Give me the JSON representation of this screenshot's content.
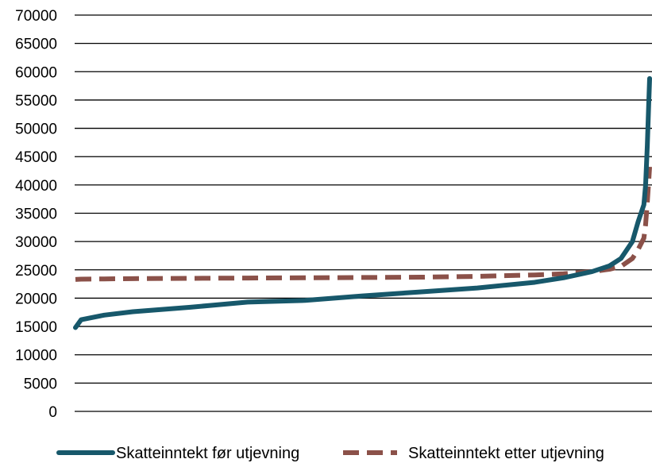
{
  "chart_data": {
    "type": "line",
    "title": "",
    "xlabel": "",
    "ylabel": "",
    "ylim": [
      0,
      70000
    ],
    "yticks": [
      0,
      5000,
      10000,
      15000,
      20000,
      25000,
      30000,
      35000,
      40000,
      45000,
      50000,
      55000,
      60000,
      65000,
      70000
    ],
    "ytick_labels": [
      "0",
      "5000",
      "10000",
      "15000",
      "20000",
      "25000",
      "30000",
      "35000",
      "40000",
      "45000",
      "50000",
      "55000",
      "60000",
      "65000",
      "70000"
    ],
    "grid": true,
    "legend_position": "bottom",
    "x": [
      0,
      0.01,
      0.05,
      0.1,
      0.2,
      0.3,
      0.4,
      0.5,
      0.6,
      0.7,
      0.8,
      0.85,
      0.9,
      0.93,
      0.95,
      0.97,
      0.98,
      0.99,
      0.993,
      0.996,
      0.998,
      1.0
    ],
    "series": [
      {
        "name": "Skatteinntekt før utjevning",
        "color": "#17586b",
        "style": "solid",
        "values": [
          14800,
          16200,
          17000,
          17600,
          18400,
          19300,
          19600,
          20400,
          21100,
          21800,
          22800,
          23600,
          24700,
          25700,
          27000,
          30000,
          33500,
          36500,
          40000,
          47000,
          53000,
          58800
        ]
      },
      {
        "name": "Skatteinntekt etter utjevning",
        "color": "#8b5149",
        "style": "dashed",
        "values": [
          23300,
          23350,
          23400,
          23450,
          23500,
          23550,
          23600,
          23650,
          23700,
          23850,
          24100,
          24300,
          24700,
          25100,
          25600,
          27000,
          28600,
          30600,
          33000,
          37000,
          40000,
          43200
        ]
      }
    ]
  }
}
